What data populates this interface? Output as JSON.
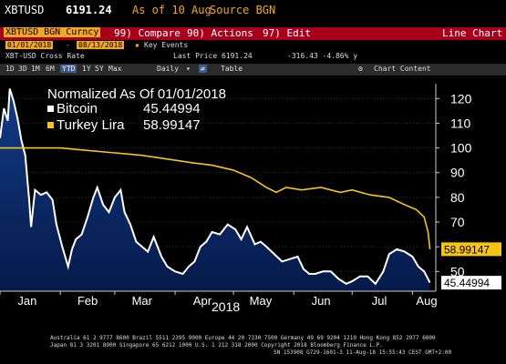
{
  "header": {
    "ticker": "XBTUSD",
    "price": "6191.24",
    "as_of": "As of 10 Aug",
    "source": "Source BGN"
  },
  "menu": {
    "security": "XBTUSD BGN Curncy",
    "compare": "99) Compare",
    "actions": "90) Actions",
    "edit": "97) Edit",
    "chart_type": "Line Chart"
  },
  "date_range": {
    "start": "01/01/2018",
    "end": "08/13/2018",
    "key_events": "Key Events"
  },
  "info": {
    "name": "XBT-USD Cross Rate",
    "last_price": "Last Price 6191.24",
    "change": "-316.43 -4.86% y"
  },
  "toolbar": {
    "periods": [
      "1D",
      "3D",
      "1M",
      "6M",
      "YTD",
      "1Y",
      "5Y",
      "Max"
    ],
    "active_period": "YTD",
    "frequency": "Daily",
    "table": "Table",
    "chart_content": "Chart Content"
  },
  "chart_data": {
    "type": "area",
    "title": "Normalized As Of 01/01/2018",
    "xlabel": "2018",
    "ylabel": "",
    "x_ticks": [
      "Jan",
      "Feb",
      "Mar",
      "Apr",
      "May",
      "Jun",
      "Jul",
      "Aug"
    ],
    "y_ticks": [
      50,
      60,
      70,
      80,
      90,
      100,
      110,
      120
    ],
    "ylim": [
      42,
      126
    ],
    "xlim": [
      "2018-01-01",
      "2018-08-13"
    ],
    "series": [
      {
        "name": "Bitcoin",
        "last_value": "45.44994",
        "color": "#ffffff",
        "fill": "#0a2a6e",
        "x": [
          "2018-01-01",
          "2018-01-03",
          "2018-01-05",
          "2018-01-06",
          "2018-01-08",
          "2018-01-10",
          "2018-01-12",
          "2018-01-14",
          "2018-01-16",
          "2018-01-17",
          "2018-01-19",
          "2018-01-22",
          "2018-01-25",
          "2018-01-28",
          "2018-01-30",
          "2018-02-02",
          "2018-02-05",
          "2018-02-07",
          "2018-02-09",
          "2018-02-12",
          "2018-02-15",
          "2018-02-18",
          "2018-02-20",
          "2018-02-23",
          "2018-02-26",
          "2018-03-01",
          "2018-03-04",
          "2018-03-06",
          "2018-03-09",
          "2018-03-12",
          "2018-03-15",
          "2018-03-18",
          "2018-03-21",
          "2018-03-25",
          "2018-03-28",
          "2018-04-01",
          "2018-04-05",
          "2018-04-08",
          "2018-04-11",
          "2018-04-14",
          "2018-04-17",
          "2018-04-20",
          "2018-04-24",
          "2018-04-28",
          "2018-05-02",
          "2018-05-05",
          "2018-05-08",
          "2018-05-12",
          "2018-05-15",
          "2018-05-18",
          "2018-05-22",
          "2018-05-26",
          "2018-05-30",
          "2018-06-03",
          "2018-06-06",
          "2018-06-09",
          "2018-06-12",
          "2018-06-16",
          "2018-06-20",
          "2018-06-24",
          "2018-06-28",
          "2018-07-01",
          "2018-07-05",
          "2018-07-09",
          "2018-07-13",
          "2018-07-17",
          "2018-07-20",
          "2018-07-24",
          "2018-07-28",
          "2018-08-01",
          "2018-08-04",
          "2018-08-07",
          "2018-08-10"
        ],
        "values": [
          104,
          116,
          111,
          124,
          119,
          112,
          103,
          97,
          79,
          68,
          83,
          81,
          82,
          79,
          69,
          60,
          52,
          59,
          63,
          65,
          72,
          80,
          84,
          77,
          74,
          80,
          83,
          74,
          69,
          62,
          60,
          58,
          64,
          56,
          52,
          50,
          49,
          52,
          54,
          60,
          62,
          66,
          65,
          69,
          67,
          63,
          68,
          61,
          62,
          60,
          57,
          54,
          55,
          56,
          51,
          49,
          49,
          50,
          50,
          47,
          45,
          46,
          48,
          48,
          45,
          50,
          57,
          59,
          58,
          56,
          52,
          50,
          45.45
        ]
      },
      {
        "name": "Turkey Lira",
        "last_value": "58.99147",
        "color": "#f5c518",
        "x": [
          "2018-01-01",
          "2018-01-15",
          "2018-02-01",
          "2018-02-15",
          "2018-03-01",
          "2018-03-15",
          "2018-04-01",
          "2018-04-10",
          "2018-04-20",
          "2018-05-01",
          "2018-05-10",
          "2018-05-18",
          "2018-05-23",
          "2018-05-28",
          "2018-06-05",
          "2018-06-15",
          "2018-06-25",
          "2018-07-01",
          "2018-07-10",
          "2018-07-20",
          "2018-07-28",
          "2018-08-03",
          "2018-08-07",
          "2018-08-09",
          "2018-08-10"
        ],
        "values": [
          100,
          100,
          100,
          99,
          98,
          97,
          95,
          94,
          93,
          91,
          88,
          84,
          82,
          84,
          83,
          84,
          82,
          83,
          81,
          80,
          77,
          75,
          72,
          66,
          59
        ]
      }
    ]
  },
  "footer": {
    "line1": "Australia 61 2 9777 8600  Brazil 5511 2395 9000  Europe 44 20 7330 7500  Germany 49 69 9204 1210  Hong Kong 852 2977 6000",
    "line2": "Japan 81 3 3201 8900          Singapore 65 6212 1000          U.S. 1 212 318 2000          Copyright 2018 Bloomberg Finance L.P.",
    "line3": "SN 153908 G729-1601-3 11-Aug-18 15:55:43 CEST GMT+2:00"
  }
}
